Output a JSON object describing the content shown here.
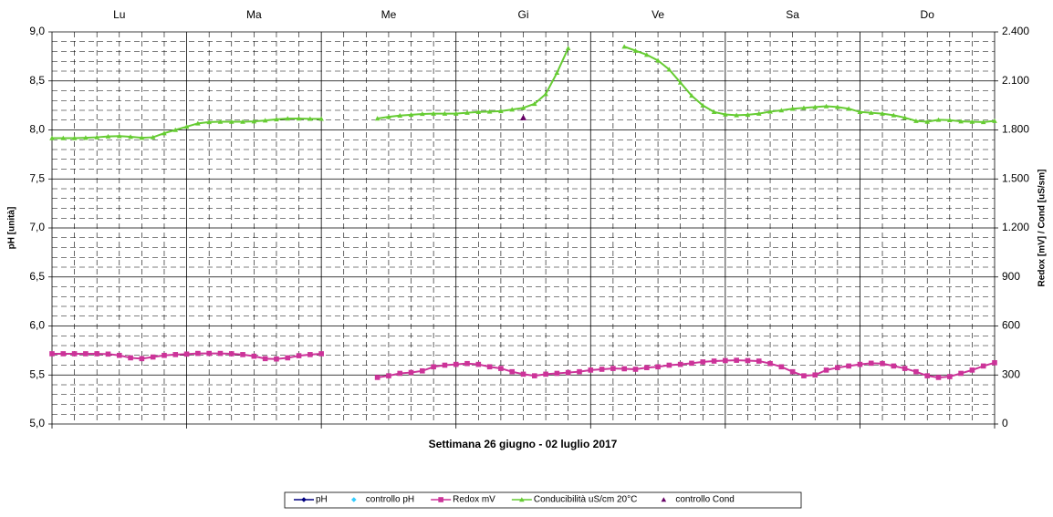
{
  "chart_data": {
    "type": "line",
    "xlabel": "Settimana   26 giugno - 02 luglio 2017",
    "ylabel": "pH [unità]",
    "y2label": "Redox [mV] / Cond [uS/sm]",
    "categories": [
      "Lu",
      "Ma",
      "Me",
      "Gi",
      "Ve",
      "Sa",
      "Do"
    ],
    "xlim": [
      0,
      168
    ],
    "ylim": [
      5,
      9
    ],
    "yticks": [
      {
        "value": 5,
        "label": "5,0"
      },
      {
        "value": 5.5,
        "label": "5,5"
      },
      {
        "value": 6,
        "label": "6,0"
      },
      {
        "value": 6.5,
        "label": "6,5"
      },
      {
        "value": 7,
        "label": "7,0"
      },
      {
        "value": 7.5,
        "label": "7,5"
      },
      {
        "value": 8,
        "label": "8,0"
      },
      {
        "value": 8.5,
        "label": "8,5"
      },
      {
        "value": 9,
        "label": "9,0"
      }
    ],
    "y2lim": [
      0,
      2400
    ],
    "y2ticks": [
      0,
      300,
      600,
      900,
      {
        "value": 1200,
        "label": "1.200"
      },
      {
        "value": 1500,
        "label": "1.500"
      },
      {
        "value": 1800,
        "label": "1.800"
      },
      {
        "value": 2100,
        "label": "2.100"
      },
      {
        "value": 2400,
        "label": "2.400"
      }
    ],
    "grid": true,
    "legend": "bottom",
    "x": [
      0,
      2,
      4,
      6,
      8,
      10,
      12,
      14,
      16,
      18,
      20,
      22,
      24,
      26,
      28,
      30,
      32,
      34,
      36,
      38,
      40,
      42,
      44,
      46,
      48,
      50,
      52,
      54,
      56,
      58,
      60,
      62,
      64,
      66,
      68,
      70,
      72,
      74,
      76,
      78,
      80,
      82,
      84,
      86,
      88,
      90,
      92,
      94,
      96,
      98,
      100,
      102,
      104,
      106,
      108,
      110,
      112,
      114,
      116,
      118,
      120,
      122,
      124,
      126,
      128,
      130,
      132,
      134,
      136,
      138,
      140,
      142,
      144,
      146,
      148,
      150,
      152,
      154,
      156,
      158,
      160,
      162,
      164,
      166,
      168
    ],
    "series": [
      {
        "name": "pH",
        "color": "#000080",
        "marker": "diamond",
        "line": true,
        "x": [],
        "values": []
      },
      {
        "name": "controllo pH",
        "color": "#33ccff",
        "marker": "diamond",
        "line": false,
        "x": [],
        "values": []
      },
      {
        "name": "Redox mV",
        "color": "#cc3399",
        "marker": "square",
        "line": true,
        "axis": "y2",
        "values": [
          430,
          430,
          430,
          430,
          430,
          428,
          420,
          405,
          400,
          410,
          420,
          425,
          428,
          432,
          432,
          432,
          430,
          425,
          415,
          400,
          398,
          405,
          418,
          425,
          430,
          null,
          null,
          null,
          null,
          285,
          295,
          310,
          315,
          325,
          350,
          360,
          365,
          370,
          365,
          350,
          340,
          320,
          305,
          295,
          305,
          310,
          315,
          320,
          330,
          335,
          340,
          338,
          335,
          345,
          350,
          360,
          365,
          372,
          380,
          385,
          388,
          390,
          388,
          385,
          370,
          350,
          320,
          295,
          300,
          330,
          345,
          355,
          365,
          372,
          370,
          355,
          340,
          320,
          295,
          285,
          290,
          310,
          330,
          355,
          375
        ]
      },
      {
        "name": "Conducibilità uS/cm 20°C",
        "color": "#66cc33",
        "marker": "triangle",
        "line": true,
        "axis": "y2",
        "values": [
          1750,
          1750,
          1750,
          1752,
          1755,
          1760,
          1762,
          1758,
          1752,
          1755,
          1780,
          1800,
          1820,
          1840,
          1848,
          1850,
          1850,
          1850,
          1852,
          1858,
          1865,
          1870,
          1870,
          1868,
          1868,
          null,
          null,
          null,
          null,
          1870,
          1880,
          1888,
          1893,
          1898,
          1900,
          1900,
          1900,
          1905,
          1910,
          1912,
          1915,
          1925,
          1935,
          1960,
          2020,
          2150,
          2300,
          null,
          null,
          null,
          null,
          2310,
          2285,
          2260,
          2225,
          2170,
          2090,
          2010,
          1950,
          1910,
          1895,
          1890,
          1893,
          1900,
          1912,
          1920,
          1930,
          1935,
          1940,
          1945,
          1940,
          1930,
          1910,
          1905,
          1900,
          1890,
          1875,
          1855,
          1850,
          1862,
          1860,
          1852,
          1850,
          1848,
          1855
        ]
      },
      {
        "name": "controllo Cond",
        "color": "#660066",
        "marker": "triangle",
        "line": false,
        "axis": "y2",
        "x": [
          84
        ],
        "values": [
          1875
        ]
      }
    ]
  }
}
